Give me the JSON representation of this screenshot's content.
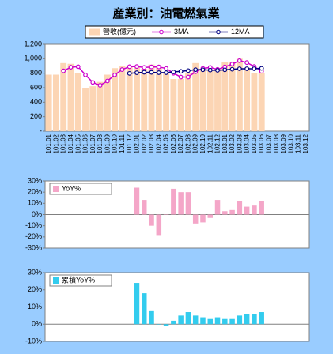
{
  "chart_data": [
    {
      "type": "bar",
      "title": "産業別：油電燃氣業",
      "legend": "top",
      "categories": [
        "101.01",
        "101.02",
        "101.03",
        "101.04",
        "101.05",
        "101.06",
        "101.07",
        "101.08",
        "101.09",
        "101.10",
        "101.11",
        "101.12",
        "102.01",
        "102.02",
        "102.03",
        "102.04",
        "102.05",
        "102.06",
        "102.07",
        "102.08",
        "102.09",
        "102.10",
        "102.11",
        "102.12",
        "103.01",
        "103.02",
        "103.03",
        "103.04",
        "103.05",
        "103.06",
        "103.07",
        "103.08",
        "103.09",
        "103.10",
        "103.11",
        "103.12"
      ],
      "series": [
        {
          "name": "營收(億元)",
          "type": "bar",
          "color": "#fcd5b4",
          "values": [
            780,
            780,
            940,
            930,
            800,
            600,
            620,
            680,
            780,
            870,
            900,
            900,
            880,
            860,
            920,
            880,
            800,
            720,
            720,
            800,
            940,
            860,
            840,
            860,
            960,
            960,
            1000,
            880,
            800,
            800,
            null,
            null,
            null,
            null,
            null,
            null
          ]
        },
        {
          "name": "3MA",
          "type": "line",
          "color": "#cc00cc",
          "values": [
            null,
            null,
            833,
            883,
            890,
            777,
            673,
            633,
            693,
            777,
            850,
            890,
            893,
            880,
            887,
            887,
            867,
            800,
            747,
            747,
            820,
            867,
            880,
            853,
            887,
            927,
            973,
            947,
            893,
            827,
            null,
            null,
            null,
            null,
            null,
            null
          ]
        },
        {
          "name": "12MA",
          "type": "line",
          "color": "#000080",
          "values": [
            null,
            null,
            null,
            null,
            null,
            null,
            null,
            null,
            null,
            null,
            null,
            798,
            807,
            813,
            812,
            808,
            808,
            818,
            826,
            836,
            849,
            848,
            843,
            840,
            847,
            855,
            862,
            862,
            862,
            868,
            null,
            null,
            null,
            null,
            null,
            null
          ]
        }
      ],
      "ylim": [
        0,
        1200
      ],
      "yticks": [
        {
          "value": 0,
          "label": "-"
        },
        200,
        400,
        600,
        800,
        {
          "value": 1000,
          "label": "1,000"
        },
        {
          "value": 1200,
          "label": "1,200"
        }
      ]
    },
    {
      "type": "bar",
      "legend": "top-left",
      "series": [
        {
          "name": "YoY%",
          "type": "bar",
          "color": "#f4a6c8",
          "values": [
            null,
            null,
            null,
            null,
            null,
            null,
            null,
            null,
            null,
            null,
            null,
            null,
            24,
            13,
            -10,
            -19,
            0,
            23,
            20,
            20,
            -8,
            -7,
            -3,
            13,
            3,
            4,
            12,
            7,
            8,
            12,
            null,
            null,
            null,
            null,
            null,
            null
          ]
        }
      ],
      "ylim": [
        -30,
        30
      ],
      "yticks": [
        {
          "value": -30,
          "label": "-30%"
        },
        {
          "value": -20,
          "label": "-20%"
        },
        {
          "value": -10,
          "label": "-10%"
        },
        {
          "value": 0,
          "label": "0%"
        },
        {
          "value": 10,
          "label": "10%"
        },
        {
          "value": 20,
          "label": "20%"
        },
        {
          "value": 30,
          "label": "30%"
        }
      ]
    },
    {
      "type": "bar",
      "legend": "top-left",
      "series": [
        {
          "name": "累積YoY%",
          "type": "bar",
          "color": "#33ccee",
          "values": [
            null,
            null,
            null,
            null,
            null,
            null,
            null,
            null,
            null,
            null,
            null,
            null,
            24,
            18,
            8,
            0,
            -1,
            2,
            5,
            7,
            5,
            4,
            3,
            4,
            3,
            3,
            5,
            6,
            6,
            7,
            null,
            null,
            null,
            null,
            null,
            null
          ]
        }
      ],
      "ylim": [
        -10,
        30
      ],
      "yticks": [
        {
          "value": -10,
          "label": "-10%"
        },
        {
          "value": 0,
          "label": "0%"
        },
        {
          "value": 10,
          "label": "10%"
        },
        {
          "value": 20,
          "label": "20%"
        },
        {
          "value": 30,
          "label": "30%"
        }
      ]
    }
  ]
}
